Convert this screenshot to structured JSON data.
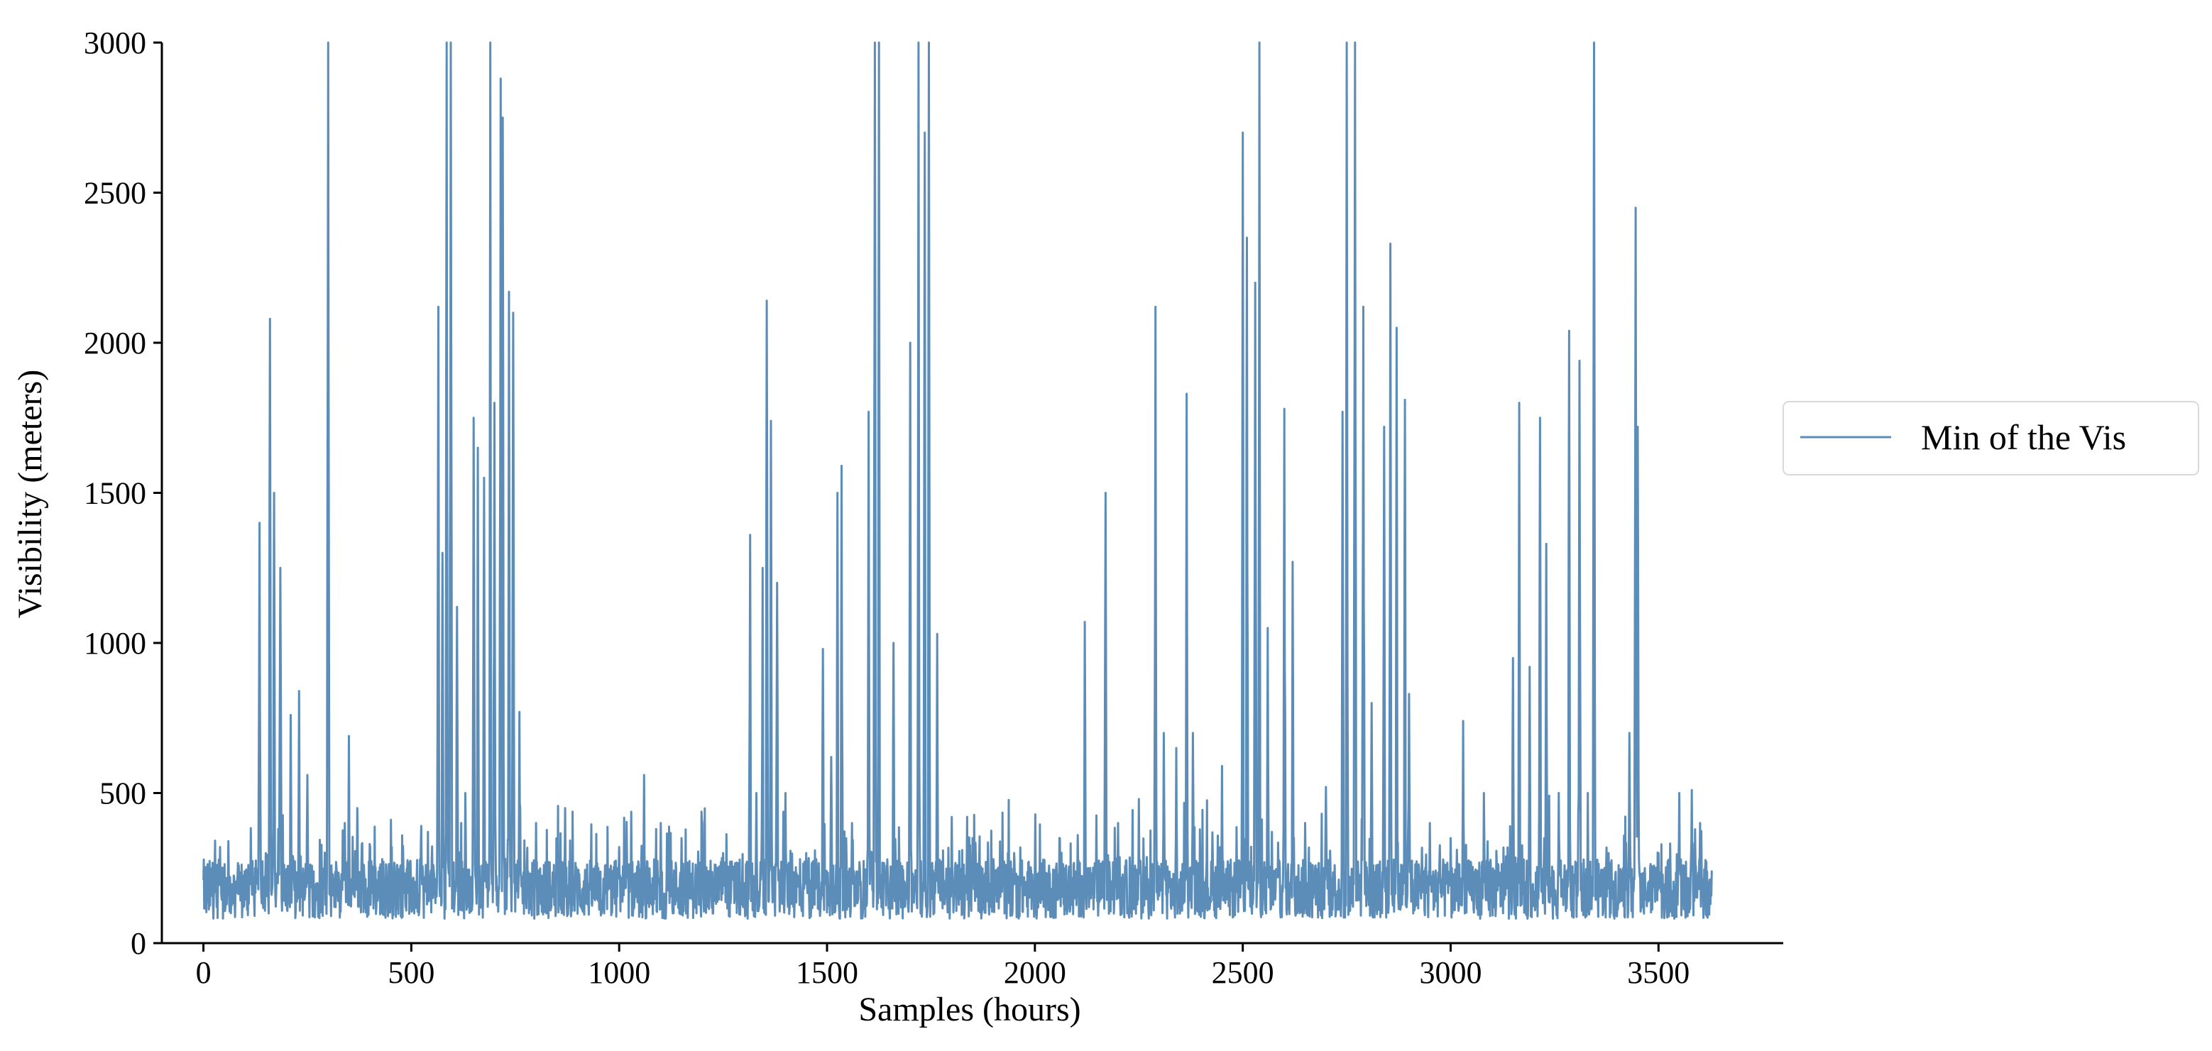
{
  "chart_data": {
    "type": "line",
    "title": "",
    "xlabel": "Samples (hours)",
    "ylabel": "Visibility (meters)",
    "xlim": [
      -100,
      3800
    ],
    "ylim": [
      0,
      3000
    ],
    "xticks": [
      0,
      500,
      1000,
      1500,
      2000,
      2500,
      3000,
      3500
    ],
    "yticks": [
      0,
      500,
      1000,
      1500,
      2000,
      2500,
      3000
    ],
    "grid": false,
    "legend_position": "right",
    "series": [
      {
        "name": "Min of the Vis",
        "color": "#5b8db8",
        "n_points": 3630,
        "baseline": 180,
        "peaks": [
          [
            0,
            130
          ],
          [
            20,
            110
          ],
          [
            40,
            320
          ],
          [
            60,
            340
          ],
          [
            80,
            180
          ],
          [
            110,
            120
          ],
          [
            135,
            1400
          ],
          [
            150,
            300
          ],
          [
            160,
            2080
          ],
          [
            170,
            1500
          ],
          [
            185,
            1250
          ],
          [
            200,
            200
          ],
          [
            210,
            760
          ],
          [
            230,
            840
          ],
          [
            250,
            560
          ],
          [
            270,
            120
          ],
          [
            300,
            3000
          ],
          [
            320,
            250
          ],
          [
            340,
            400
          ],
          [
            350,
            690
          ],
          [
            370,
            450
          ],
          [
            400,
            330
          ],
          [
            430,
            280
          ],
          [
            460,
            260
          ],
          [
            490,
            220
          ],
          [
            520,
            50
          ],
          [
            540,
            280
          ],
          [
            565,
            2120
          ],
          [
            575,
            1300
          ],
          [
            585,
            3000
          ],
          [
            595,
            3000
          ],
          [
            610,
            1120
          ],
          [
            630,
            500
          ],
          [
            650,
            1750
          ],
          [
            660,
            1650
          ],
          [
            675,
            1550
          ],
          [
            690,
            3000
          ],
          [
            700,
            1800
          ],
          [
            715,
            2880
          ],
          [
            720,
            2750
          ],
          [
            735,
            2170
          ],
          [
            745,
            2100
          ],
          [
            760,
            770
          ],
          [
            800,
            400
          ],
          [
            870,
            450
          ],
          [
            950,
            250
          ],
          [
            1000,
            320
          ],
          [
            1060,
            560
          ],
          [
            1100,
            400
          ],
          [
            1150,
            350
          ],
          [
            1200,
            400
          ],
          [
            1250,
            300
          ],
          [
            1300,
            200
          ],
          [
            1315,
            1360
          ],
          [
            1330,
            500
          ],
          [
            1345,
            1250
          ],
          [
            1355,
            2140
          ],
          [
            1365,
            1740
          ],
          [
            1380,
            1200
          ],
          [
            1400,
            500
          ],
          [
            1450,
            300
          ],
          [
            1490,
            980
          ],
          [
            1510,
            620
          ],
          [
            1525,
            1500
          ],
          [
            1535,
            1590
          ],
          [
            1560,
            400
          ],
          [
            1600,
            1770
          ],
          [
            1615,
            3000
          ],
          [
            1625,
            3000
          ],
          [
            1660,
            1000
          ],
          [
            1700,
            2000
          ],
          [
            1720,
            3000
          ],
          [
            1735,
            2700
          ],
          [
            1745,
            3000
          ],
          [
            1765,
            1030
          ],
          [
            1800,
            420
          ],
          [
            1850,
            350
          ],
          [
            1900,
            280
          ],
          [
            1950,
            300
          ],
          [
            2000,
            260
          ],
          [
            2060,
            350
          ],
          [
            2120,
            1070
          ],
          [
            2170,
            1500
          ],
          [
            2200,
            400
          ],
          [
            2250,
            480
          ],
          [
            2290,
            2120
          ],
          [
            2310,
            700
          ],
          [
            2340,
            650
          ],
          [
            2365,
            1830
          ],
          [
            2380,
            700
          ],
          [
            2450,
            590
          ],
          [
            2500,
            2700
          ],
          [
            2510,
            2350
          ],
          [
            2530,
            2200
          ],
          [
            2540,
            3000
          ],
          [
            2560,
            1050
          ],
          [
            2600,
            1780
          ],
          [
            2620,
            1270
          ],
          [
            2650,
            400
          ],
          [
            2700,
            520
          ],
          [
            2740,
            1770
          ],
          [
            2750,
            3000
          ],
          [
            2770,
            3000
          ],
          [
            2790,
            2120
          ],
          [
            2810,
            800
          ],
          [
            2840,
            1720
          ],
          [
            2855,
            2330
          ],
          [
            2870,
            2050
          ],
          [
            2890,
            1810
          ],
          [
            2900,
            830
          ],
          [
            2950,
            400
          ],
          [
            3000,
            350
          ],
          [
            3030,
            740
          ],
          [
            3080,
            500
          ],
          [
            3150,
            950
          ],
          [
            3165,
            1800
          ],
          [
            3190,
            920
          ],
          [
            3215,
            1750
          ],
          [
            3230,
            1330
          ],
          [
            3260,
            500
          ],
          [
            3285,
            2040
          ],
          [
            3310,
            1940
          ],
          [
            3330,
            500
          ],
          [
            3345,
            3000
          ],
          [
            3380,
            300
          ],
          [
            3430,
            700
          ],
          [
            3445,
            2450
          ],
          [
            3450,
            1720
          ],
          [
            3500,
            300
          ],
          [
            3550,
            500
          ],
          [
            3580,
            510
          ],
          [
            3600,
            400
          ],
          [
            3625,
            130
          ]
        ]
      }
    ]
  }
}
